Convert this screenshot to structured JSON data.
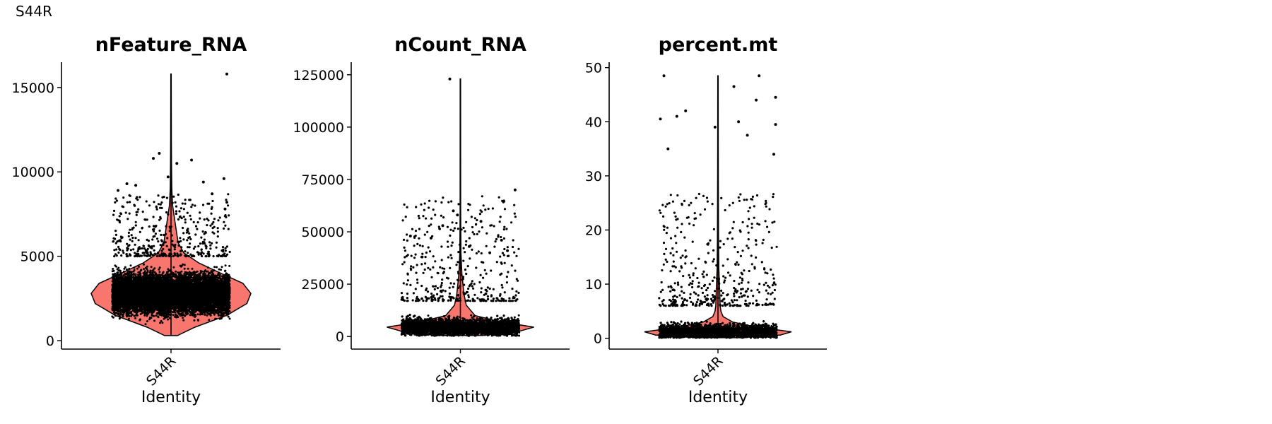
{
  "figure": {
    "label": "S44R"
  },
  "colors": {
    "violin_fill": "#F8766D",
    "violin_stroke": "#000000",
    "point": "#000000"
  },
  "chart_data": [
    {
      "type": "violin",
      "title": "nFeature_RNA",
      "xlabel": "Identity",
      "ylabel": "",
      "categories": [
        "S44R"
      ],
      "ylim": [
        -500,
        16500
      ],
      "yticks": [
        0,
        5000,
        10000,
        15000
      ],
      "ytick_labels": [
        "0",
        "5000",
        "10000",
        "15000"
      ],
      "max_value": 15800,
      "violin_density": [
        [
          300,
          0.08
        ],
        [
          800,
          0.3
        ],
        [
          1500,
          0.7
        ],
        [
          2200,
          0.95
        ],
        [
          2800,
          1.0
        ],
        [
          3400,
          0.9
        ],
        [
          4000,
          0.62
        ],
        [
          4600,
          0.35
        ],
        [
          5200,
          0.16
        ],
        [
          5800,
          0.09
        ],
        [
          6400,
          0.07
        ],
        [
          7200,
          0.045
        ],
        [
          8000,
          0.02
        ],
        [
          9000,
          0.01
        ],
        [
          10500,
          0.006
        ],
        [
          12000,
          0.004
        ],
        [
          15800,
          0.003
        ]
      ],
      "points": {
        "count": 9000,
        "dense_range": [
          200,
          5000
        ],
        "outliers": [
          [
            0.95,
            15800
          ],
          [
            -0.2,
            11100
          ],
          [
            -0.3,
            10800
          ],
          [
            0.35,
            10700
          ],
          [
            0.1,
            10500
          ],
          [
            -0.05,
            9700
          ],
          [
            0.9,
            9600
          ],
          [
            -0.75,
            9300
          ],
          [
            0.55,
            9400
          ],
          [
            -0.6,
            9200
          ],
          [
            0.95,
            8200
          ],
          [
            0.92,
            7800
          ],
          [
            -0.9,
            8900
          ],
          [
            0.7,
            8700
          ]
        ]
      }
    },
    {
      "type": "violin",
      "title": "nCount_RNA",
      "xlabel": "Identity",
      "ylabel": "",
      "categories": [
        "S44R"
      ],
      "ylim": [
        -6000,
        131000
      ],
      "yticks": [
        0,
        25000,
        50000,
        75000,
        100000,
        125000
      ],
      "ytick_labels": [
        "0",
        "25000",
        "50000",
        "75000",
        "100000",
        "125000"
      ],
      "max_value": 123000,
      "violin_density": [
        [
          500,
          0.3
        ],
        [
          2500,
          0.8
        ],
        [
          4500,
          1.0
        ],
        [
          7000,
          0.55
        ],
        [
          10000,
          0.2
        ],
        [
          15000,
          0.08
        ],
        [
          20000,
          0.05
        ],
        [
          25000,
          0.035
        ],
        [
          30000,
          0.02
        ],
        [
          40000,
          0.008
        ],
        [
          60000,
          0.004
        ],
        [
          123000,
          0.003
        ]
      ],
      "points": {
        "count": 9000,
        "dense_range": [
          300,
          17000
        ],
        "outliers": [
          [
            -0.18,
            123000
          ],
          [
            0.93,
            70000
          ],
          [
            -0.12,
            60000
          ],
          [
            -0.05,
            58000
          ],
          [
            0.35,
            55000
          ],
          [
            -0.3,
            53000
          ],
          [
            -0.85,
            48000
          ],
          [
            -0.5,
            47000
          ],
          [
            0.7,
            46000
          ],
          [
            0.15,
            43000
          ],
          [
            0.8,
            41000
          ],
          [
            0.5,
            40000
          ],
          [
            -0.65,
            38000
          ]
        ]
      }
    },
    {
      "type": "violin",
      "title": "percent.mt",
      "xlabel": "Identity",
      "ylabel": "",
      "categories": [
        "S44R"
      ],
      "ylim": [
        -2,
        51
      ],
      "yticks": [
        0,
        10,
        20,
        30,
        40,
        50
      ],
      "ytick_labels": [
        "0",
        "10",
        "20",
        "30",
        "40",
        "50"
      ],
      "max_value": 48.5,
      "violin_density": [
        [
          0.1,
          0.3
        ],
        [
          0.6,
          0.85
        ],
        [
          1.2,
          1.0
        ],
        [
          2.0,
          0.55
        ],
        [
          3.0,
          0.2
        ],
        [
          4.0,
          0.07
        ],
        [
          5.0,
          0.04
        ],
        [
          6.0,
          0.03
        ],
        [
          8.0,
          0.025
        ],
        [
          10.0,
          0.02
        ],
        [
          13.0,
          0.012
        ],
        [
          18.0,
          0.008
        ],
        [
          25.0,
          0.006
        ],
        [
          35.0,
          0.004
        ],
        [
          48.5,
          0.003
        ]
      ],
      "points": {
        "count": 9000,
        "dense_range": [
          0.1,
          6
        ],
        "outliers": [
          [
            -0.92,
            48.5
          ],
          [
            0.7,
            48.5
          ],
          [
            0.27,
            46.5
          ],
          [
            0.98,
            44.5
          ],
          [
            0.65,
            44
          ],
          [
            -0.55,
            42
          ],
          [
            -0.7,
            41
          ],
          [
            -0.98,
            40.5
          ],
          [
            0.35,
            40
          ],
          [
            0.98,
            39.5
          ],
          [
            -0.05,
            39
          ],
          [
            0.5,
            37.5
          ],
          [
            -0.85,
            35
          ],
          [
            0.95,
            34
          ]
        ]
      }
    }
  ]
}
